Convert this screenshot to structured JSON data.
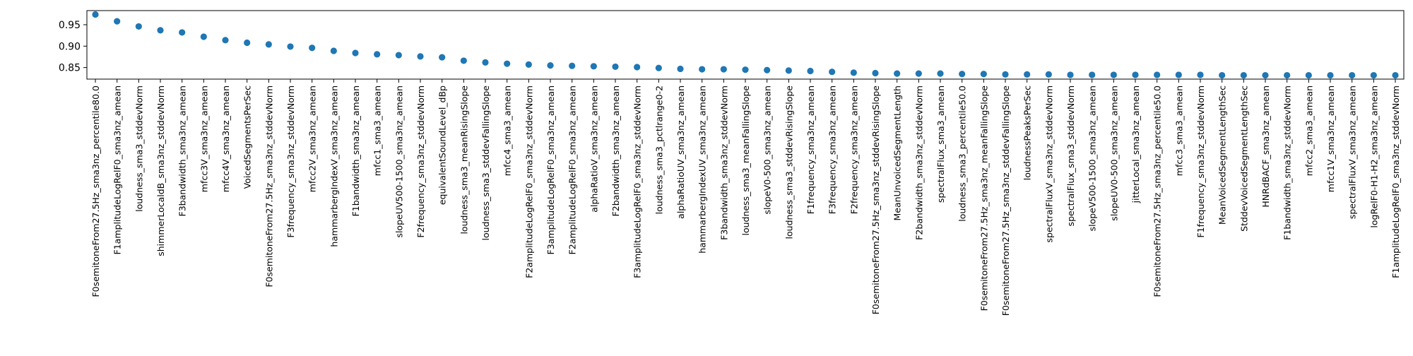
{
  "chart_data": {
    "type": "scatter",
    "title": "",
    "xlabel": "",
    "ylabel": "",
    "ylim": [
      0.823,
      0.983
    ],
    "yticks": [
      0.85,
      0.9,
      0.95
    ],
    "ytick_labels": [
      "0.85",
      "0.90",
      "0.95"
    ],
    "grid": false,
    "legend": "none",
    "marker_color": "#1f77b4",
    "categories": [
      "F0semitoneFrom27.5Hz_sma3nz_percentile80.0",
      "F1amplitudeLogRelF0_sma3nz_amean",
      "loudness_sma3_stddevNorm",
      "shimmerLocaldB_sma3nz_stddevNorm",
      "F3bandwidth_sma3nz_amean",
      "mfcc3V_sma3nz_amean",
      "mfcc4V_sma3nz_amean",
      "VoicedSegmentsPerSec",
      "F0semitoneFrom27.5Hz_sma3nz_stddevNorm",
      "F3frequency_sma3nz_stddevNorm",
      "mfcc2V_sma3nz_amean",
      "hammarbergIndexV_sma3nz_amean",
      "F1bandwidth_sma3nz_amean",
      "mfcc1_sma3_amean",
      "slopeUV500-1500_sma3nz_amean",
      "F2frequency_sma3nz_stddevNorm",
      "equivalentSoundLevel_dBp",
      "loudness_sma3_meanRisingSlope",
      "loudness_sma3_stddevFallingSlope",
      "mfcc4_sma3_amean",
      "F2amplitudeLogRelF0_sma3nz_stddevNorm",
      "F3amplitudeLogRelF0_sma3nz_amean",
      "F2amplitudeLogRelF0_sma3nz_amean",
      "alphaRatioV_sma3nz_amean",
      "F2bandwidth_sma3nz_amean",
      "F3amplitudeLogRelF0_sma3nz_stddevNorm",
      "loudness_sma3_pctlrange0-2",
      "alphaRatioUV_sma3nz_amean",
      "hammarbergIndexUV_sma3nz_amean",
      "F3bandwidth_sma3nz_stddevNorm",
      "loudness_sma3_meanFallingSlope",
      "slopeV0-500_sma3nz_amean",
      "loudness_sma3_stddevRisingSlope",
      "F1frequency_sma3nz_amean",
      "F3frequency_sma3nz_amean",
      "F2frequency_sma3nz_amean",
      "F0semitoneFrom27.5Hz_sma3nz_stddevRisingSlope",
      "MeanUnvoicedSegmentLength",
      "F2bandwidth_sma3nz_stddevNorm",
      "spectralFlux_sma3_amean",
      "loudness_sma3_percentile50.0",
      "F0semitoneFrom27.5Hz_sma3nz_meanFallingSlope",
      "F0semitoneFrom27.5Hz_sma3nz_stddevFallingSlope",
      "loudnessPeaksPerSec",
      "spectralFluxV_sma3nz_stddevNorm",
      "spectralFlux_sma3_stddevNorm",
      "slopeV500-1500_sma3nz_amean",
      "slopeUV0-500_sma3nz_amean",
      "jitterLocal_sma3nz_amean",
      "F0semitoneFrom27.5Hz_sma3nz_percentile50.0",
      "mfcc3_sma3_amean",
      "F1frequency_sma3nz_stddevNorm",
      "MeanVoicedSegmentLengthSec",
      "StddevVoicedSegmentLengthSec",
      "HNRdBACF_sma3nz_amean",
      "F1bandwidth_sma3nz_stddevNorm",
      "mfcc2_sma3_amean",
      "mfcc1V_sma3nz_amean",
      "spectralFluxV_sma3nz_amean",
      "logRelF0-H1-H2_sma3nz_amean",
      "F1amplitudeLogRelF0_sma3nz_stddevNorm"
    ],
    "values": [
      0.974,
      0.958,
      0.946,
      0.937,
      0.932,
      0.922,
      0.914,
      0.908,
      0.904,
      0.899,
      0.896,
      0.889,
      0.884,
      0.881,
      0.879,
      0.876,
      0.874,
      0.866,
      0.862,
      0.859,
      0.857,
      0.855,
      0.854,
      0.853,
      0.852,
      0.851,
      0.849,
      0.847,
      0.846,
      0.846,
      0.845,
      0.844,
      0.843,
      0.842,
      0.84,
      0.838,
      0.837,
      0.836,
      0.836,
      0.836,
      0.835,
      0.835,
      0.834,
      0.834,
      0.834,
      0.833,
      0.833,
      0.833,
      0.833,
      0.833,
      0.833,
      0.833,
      0.832,
      0.832,
      0.832,
      0.832,
      0.832,
      0.832,
      0.832,
      0.832,
      0.832
    ]
  }
}
